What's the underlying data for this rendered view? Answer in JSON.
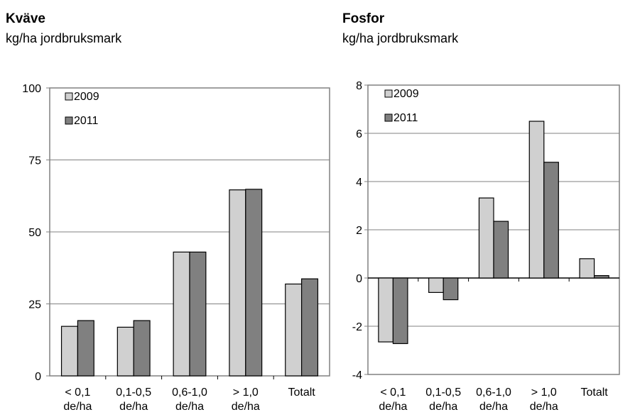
{
  "chart_data": [
    {
      "type": "bar",
      "title": "Kväve",
      "subtitle": "kg/ha jordbruksmark",
      "categories": [
        [
          "< 0,1",
          "de/ha"
        ],
        [
          "0,1-0,5",
          "de/ha"
        ],
        [
          "0,6-1,0",
          "de/ha"
        ],
        [
          "> 1,0",
          "de/ha"
        ],
        [
          "Totalt"
        ]
      ],
      "series": [
        {
          "name": "2009",
          "color": "#d0d0d0",
          "values": [
            17.2,
            16.9,
            43.0,
            64.6,
            31.9
          ]
        },
        {
          "name": "2011",
          "color": "#808080",
          "values": [
            19.2,
            19.2,
            43.0,
            64.8,
            33.7
          ]
        }
      ],
      "ylim": [
        0,
        100
      ],
      "yticks": [
        "0",
        "25",
        "50",
        "75",
        "100"
      ],
      "grid": true,
      "legend": "top-left"
    },
    {
      "type": "bar",
      "title": "Fosfor",
      "subtitle": "kg/ha jordbruksmark",
      "categories": [
        [
          "< 0,1",
          "de/ha"
        ],
        [
          "0,1-0,5",
          "de/ha"
        ],
        [
          "0,6-1,0",
          "de/ha"
        ],
        [
          "> 1,0",
          "de/ha"
        ],
        [
          "Totalt"
        ]
      ],
      "series": [
        {
          "name": "2009",
          "color": "#d0d0d0",
          "values": [
            -2.65,
            -0.6,
            3.32,
            6.5,
            0.8
          ]
        },
        {
          "name": "2011",
          "color": "#808080",
          "values": [
            -2.72,
            -0.9,
            2.35,
            4.8,
            0.1
          ]
        }
      ],
      "ylim": [
        -4,
        8
      ],
      "yticks": [
        "-4",
        "-2",
        "0",
        "2",
        "4",
        "6",
        "8"
      ],
      "grid": true,
      "legend": "top-left"
    }
  ]
}
